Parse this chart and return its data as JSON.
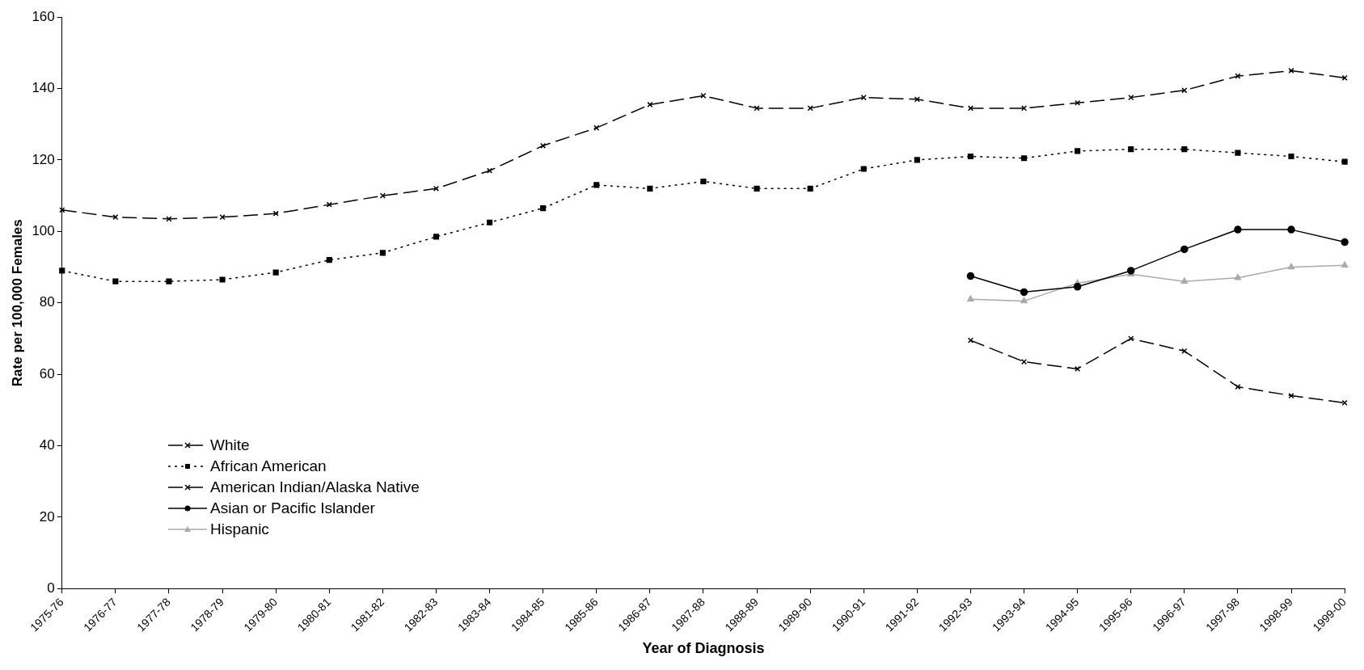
{
  "chart_data": {
    "type": "line",
    "xlabel": "Year of Diagnosis",
    "ylabel": "Rate per 100,000 Females",
    "categories": [
      "1975-76",
      "1976-77",
      "1977-78",
      "1978-79",
      "1979-80",
      "1980-81",
      "1981-82",
      "1982-83",
      "1983-84",
      "1984-85",
      "1985-86",
      "1986-87",
      "1987-88",
      "1988-89",
      "1989-90",
      "1990-91",
      "1991-92",
      "1992-93",
      "1993-94",
      "1994-95",
      "1995-96",
      "1996-97",
      "1997-98",
      "1998-99",
      "1999-00"
    ],
    "series": [
      {
        "name": "White",
        "color": "#000000",
        "marker": "cross",
        "line_style": "dashed",
        "values": [
          106,
          104,
          103.5,
          104,
          105,
          107.5,
          110,
          112,
          117,
          124,
          129,
          135.5,
          138,
          134.5,
          134.5,
          137.5,
          137,
          134.5,
          134.5,
          136,
          137.5,
          139.5,
          143.5,
          145,
          143
        ]
      },
      {
        "name": "African American",
        "color": "#000000",
        "marker": "square",
        "line_style": "dotted",
        "values": [
          89,
          86,
          86,
          86.5,
          88.5,
          92,
          94,
          98.5,
          102.5,
          106.5,
          113,
          112,
          114,
          112,
          112,
          117.5,
          120,
          121,
          120.5,
          122.5,
          123,
          123,
          122,
          121,
          119.5
        ]
      },
      {
        "name": "American Indian/Alaska Native",
        "color": "#000000",
        "marker": "cross",
        "line_style": "dashed",
        "values": [
          null,
          null,
          null,
          null,
          null,
          null,
          null,
          null,
          null,
          null,
          null,
          null,
          null,
          null,
          null,
          null,
          null,
          69.5,
          63.5,
          61.5,
          70,
          66.5,
          56.5,
          54,
          52
        ]
      },
      {
        "name": "Asian or Pacific Islander",
        "color": "#000000",
        "marker": "circle",
        "line_style": "solid",
        "values": [
          null,
          null,
          null,
          null,
          null,
          null,
          null,
          null,
          null,
          null,
          null,
          null,
          null,
          null,
          null,
          null,
          null,
          87.5,
          83,
          84.5,
          89,
          95,
          100.5,
          100.5,
          97
        ]
      },
      {
        "name": "Hispanic",
        "color": "#aaaaaa",
        "marker": "triangle",
        "line_style": "solid",
        "values": [
          null,
          null,
          null,
          null,
          null,
          null,
          null,
          null,
          null,
          null,
          null,
          null,
          null,
          null,
          null,
          null,
          null,
          81,
          80.5,
          85.5,
          88,
          86,
          87,
          90,
          90.5
        ]
      }
    ],
    "ylim": [
      0,
      160
    ],
    "yticks": [
      0,
      20,
      40,
      60,
      80,
      100,
      120,
      140,
      160
    ],
    "legend": "bottom left"
  }
}
